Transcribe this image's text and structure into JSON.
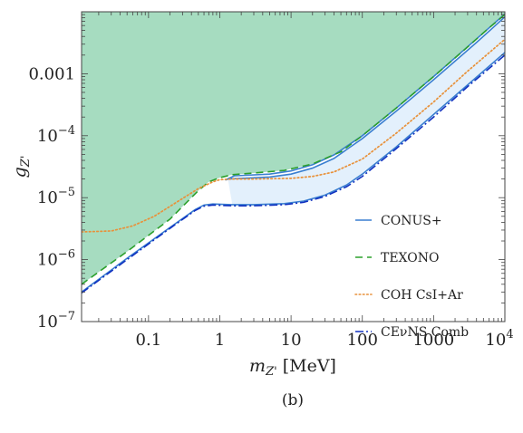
{
  "chart_data": {
    "type": "line",
    "title": "",
    "caption": "(b)",
    "xlabel": {
      "main": "m",
      "sub": "Z'",
      "unit": " [MeV]"
    },
    "ylabel": {
      "main": "g",
      "sub": "Z'"
    },
    "x_scale": "log",
    "y_scale": "log",
    "xlim": [
      0.0115,
      10000
    ],
    "ylim": [
      1e-07,
      0.01
    ],
    "x_ticks": [
      {
        "value": 0.1,
        "label": "0.1"
      },
      {
        "value": 1,
        "label": "1"
      },
      {
        "value": 10,
        "label": "10"
      },
      {
        "value": 100,
        "label": "100"
      },
      {
        "value": 1000,
        "label": "1000"
      },
      {
        "value": 10000,
        "label": "10",
        "exp": "4"
      }
    ],
    "y_ticks": [
      {
        "value": 1e-07,
        "label": "10",
        "exp": "−7"
      },
      {
        "value": 1e-06,
        "label": "10",
        "exp": "−6"
      },
      {
        "value": 1e-05,
        "label": "10",
        "exp": "−5"
      },
      {
        "value": 0.0001,
        "label": "10",
        "exp": "−4"
      },
      {
        "value": 0.001,
        "label": "0.001"
      }
    ],
    "legend_position": "bottom-right",
    "series": [
      {
        "name": "CONUS+",
        "color": "#3a7fd0",
        "style": "solid",
        "fill": "#e3f0fc",
        "lower": [
          [
            0.0115,
            3e-07
          ],
          [
            0.05,
            1.05e-06
          ],
          [
            0.2,
            3.3e-06
          ],
          [
            0.45,
            6.4e-06
          ],
          [
            0.6,
            7.6e-06
          ],
          [
            0.8,
            7.9e-06
          ],
          [
            1.5,
            7.7e-06
          ],
          [
            3,
            7.7e-06
          ],
          [
            8,
            8e-06
          ],
          [
            15,
            8.8e-06
          ],
          [
            30,
            1.1e-05
          ],
          [
            60,
            1.6e-05
          ],
          [
            100,
            2.4e-05
          ],
          [
            300,
            6.6e-05
          ],
          [
            1000,
            0.00022
          ],
          [
            3000,
            0.00066
          ],
          [
            10000,
            0.0022
          ]
        ],
        "upper": [
          [
            1.3,
            2e-05
          ],
          [
            2,
            2.05e-05
          ],
          [
            5,
            2.15e-05
          ],
          [
            10,
            2.4e-05
          ],
          [
            20,
            3e-05
          ],
          [
            40,
            4.3e-05
          ],
          [
            100,
            9e-05
          ],
          [
            300,
            0.00025
          ],
          [
            1000,
            0.0008
          ],
          [
            4000,
            0.0032
          ],
          [
            7000,
            0.0057
          ],
          [
            10000,
            0.0083
          ]
        ]
      },
      {
        "name": "TEXONO",
        "color": "#2ca02c",
        "style": "dashed",
        "fill": "#a6dcc0",
        "points": [
          [
            0.0115,
            4e-07
          ],
          [
            0.05,
            1.35e-06
          ],
          [
            0.2,
            4.5e-06
          ],
          [
            0.5,
            1.3e-05
          ],
          [
            0.7,
            1.8e-05
          ],
          [
            1,
            2.1e-05
          ],
          [
            1.5,
            2.35e-05
          ],
          [
            3,
            2.5e-05
          ],
          [
            8,
            2.75e-05
          ],
          [
            20,
            3.5e-05
          ],
          [
            50,
            5.5e-05
          ],
          [
            100,
            0.0001
          ],
          [
            300,
            0.00028
          ],
          [
            1000,
            0.0009
          ],
          [
            3000,
            0.0027
          ],
          [
            6000,
            0.0055
          ],
          [
            10000,
            0.009
          ]
        ]
      },
      {
        "name": "COH CsI+Ar",
        "color": "#e8913a",
        "style": "dotted",
        "points": [
          [
            0.0115,
            2.8e-06
          ],
          [
            0.03,
            2.9e-06
          ],
          [
            0.06,
            3.5e-06
          ],
          [
            0.12,
            5e-06
          ],
          [
            0.25,
            8.5e-06
          ],
          [
            0.5,
            1.4e-05
          ],
          [
            0.8,
            1.8e-05
          ],
          [
            1,
            1.95e-05
          ],
          [
            1.5,
            2e-05
          ],
          [
            3,
            2e-05
          ],
          [
            10,
            2.05e-05
          ],
          [
            20,
            2.2e-05
          ],
          [
            40,
            2.6e-05
          ],
          [
            100,
            4.2e-05
          ],
          [
            300,
            0.00011
          ],
          [
            1000,
            0.00035
          ],
          [
            3000,
            0.0011
          ],
          [
            10000,
            0.0036
          ]
        ]
      },
      {
        "name": "CEνNS Comb",
        "color": "#1030c0",
        "style": "dashdot",
        "points": [
          [
            0.0115,
            2.9e-07
          ],
          [
            0.05,
            1e-06
          ],
          [
            0.2,
            3.2e-06
          ],
          [
            0.45,
            6.2e-06
          ],
          [
            0.6,
            7.3e-06
          ],
          [
            0.8,
            7.6e-06
          ],
          [
            1.5,
            7.4e-06
          ],
          [
            3,
            7.4e-06
          ],
          [
            8,
            7.7e-06
          ],
          [
            15,
            8.4e-06
          ],
          [
            30,
            1.05e-05
          ],
          [
            60,
            1.5e-05
          ],
          [
            100,
            2.2e-05
          ],
          [
            300,
            6.2e-05
          ],
          [
            1000,
            0.0002
          ],
          [
            3000,
            0.00062
          ],
          [
            10000,
            0.002
          ]
        ]
      }
    ]
  }
}
